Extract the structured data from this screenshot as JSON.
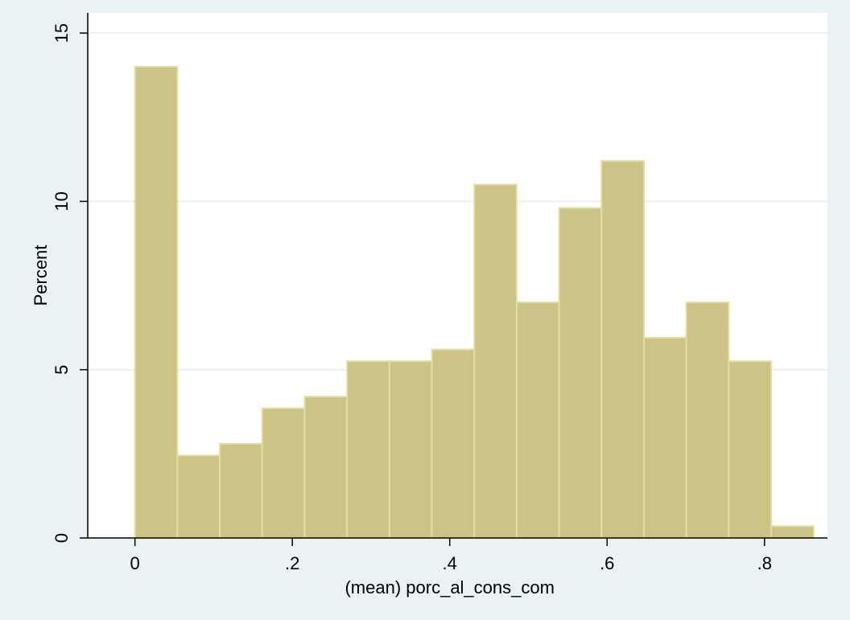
{
  "chart_data": {
    "type": "histogram",
    "xlabel": "(mean) porc_al_cons_com",
    "ylabel": "Percent",
    "xlim": [
      -0.06,
      0.88
    ],
    "ylim": [
      0,
      15.6
    ],
    "x_ticks": [
      {
        "value": 0,
        "label": "0"
      },
      {
        "value": 0.2,
        "label": ".2"
      },
      {
        "value": 0.4,
        "label": ".4"
      },
      {
        "value": 0.6,
        "label": ".6"
      },
      {
        "value": 0.8,
        "label": ".8"
      }
    ],
    "y_ticks": [
      {
        "value": 0,
        "label": "0"
      },
      {
        "value": 5,
        "label": "5"
      },
      {
        "value": 10,
        "label": "10"
      },
      {
        "value": 15,
        "label": "15"
      }
    ],
    "grid": true,
    "bin_width": 0.0539,
    "bins": [
      {
        "x0": 0.0,
        "value": 14.0
      },
      {
        "x0": 0.0539,
        "value": 2.45
      },
      {
        "x0": 0.1078,
        "value": 2.8
      },
      {
        "x0": 0.1617,
        "value": 3.85
      },
      {
        "x0": 0.2156,
        "value": 4.2
      },
      {
        "x0": 0.2695,
        "value": 5.25
      },
      {
        "x0": 0.3234,
        "value": 5.25
      },
      {
        "x0": 0.3773,
        "value": 5.6
      },
      {
        "x0": 0.4312,
        "value": 10.5
      },
      {
        "x0": 0.4851,
        "value": 7.0
      },
      {
        "x0": 0.539,
        "value": 9.8
      },
      {
        "x0": 0.5929,
        "value": 11.2
      },
      {
        "x0": 0.6468,
        "value": 5.95
      },
      {
        "x0": 0.7007,
        "value": 7.0
      },
      {
        "x0": 0.7546,
        "value": 5.25
      },
      {
        "x0": 0.8085,
        "value": 0.35
      }
    ],
    "colors": {
      "background": "#eaf2f3",
      "plot_area": "#ffffff",
      "bar_fill": "#cbc486",
      "bar_stroke": "#e3df9c",
      "grid": "#eaf2f3",
      "axis": "#000000"
    }
  }
}
